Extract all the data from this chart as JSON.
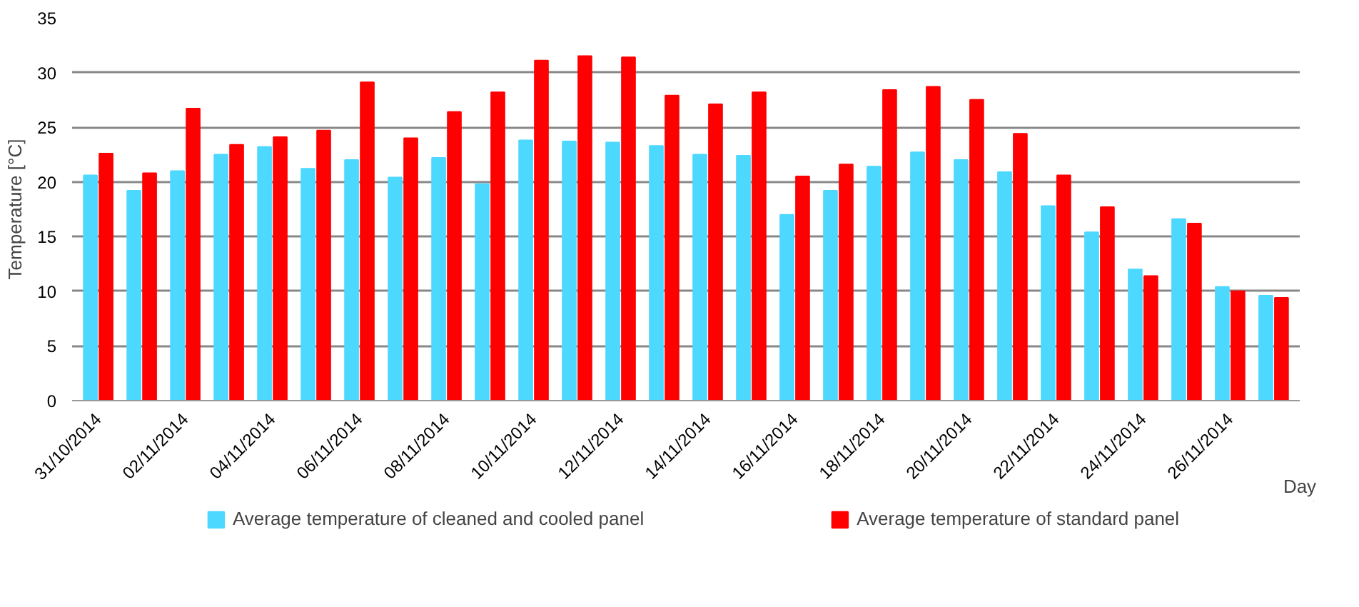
{
  "chart_data": {
    "type": "bar",
    "xlabel": "Day",
    "ylabel": "Temperature [°C]",
    "categories": [
      "31/10/2014",
      null,
      "02/11/2014",
      null,
      "04/11/2014",
      null,
      "06/11/2014",
      null,
      "08/11/2014",
      null,
      "10/11/2014",
      null,
      "12/11/2014",
      null,
      "14/11/2014",
      null,
      "16/11/2014",
      null,
      "18/11/2014",
      null,
      "20/11/2014",
      null,
      "22/11/2014",
      null,
      "24/11/2014",
      null,
      "26/11/2014",
      null
    ],
    "series": [
      {
        "name": "Average temperature of cleaned and cooled panel",
        "color": "#4dd8ff",
        "values": [
          20.6,
          19.2,
          21.0,
          22.5,
          23.2,
          21.2,
          22.0,
          20.4,
          22.2,
          19.8,
          23.8,
          23.7,
          23.6,
          23.3,
          22.5,
          22.4,
          17.0,
          19.2,
          21.4,
          22.7,
          22.0,
          20.9,
          17.8,
          15.4,
          12.0,
          16.6,
          10.4,
          9.6
        ]
      },
      {
        "name": "Average temperature of standard panel",
        "color": "#ff0000",
        "values": [
          22.6,
          20.8,
          26.7,
          23.4,
          24.1,
          24.7,
          29.1,
          24.0,
          26.4,
          28.2,
          31.1,
          31.5,
          31.4,
          27.9,
          27.1,
          28.2,
          20.5,
          21.6,
          28.4,
          28.7,
          27.5,
          24.4,
          20.6,
          17.7,
          11.4,
          16.2,
          10.0,
          9.4
        ]
      }
    ],
    "ylim": [
      0,
      35
    ],
    "yticks": [
      0,
      5,
      10,
      15,
      20,
      25,
      30,
      35
    ],
    "grid": "y",
    "legend": "bottom"
  }
}
